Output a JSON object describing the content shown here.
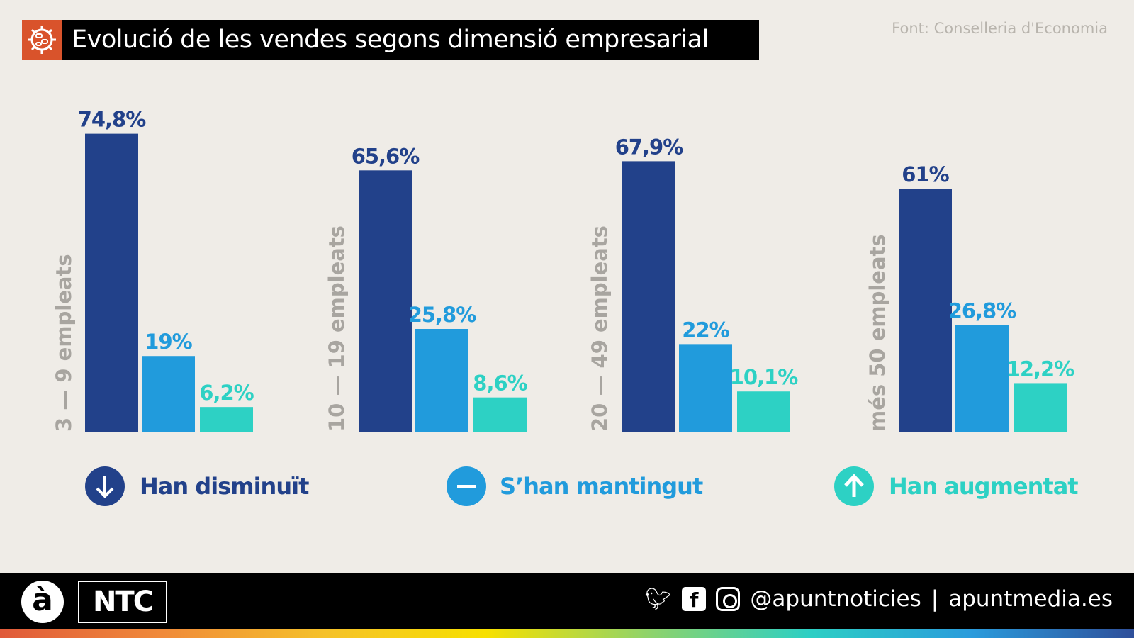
{
  "header": {
    "title": "Evolució de les vendes segons dimensió empresarial",
    "source": "Font: Conselleria d'Economia",
    "icon": "virus-icon"
  },
  "colors": {
    "decreased": "#22418a",
    "maintained": "#219bdc",
    "increased": "#2dd1c4",
    "title_icon": "#d9532b"
  },
  "chart_data": {
    "type": "bar",
    "categories": [
      "3 — 9 empleats",
      "10 — 19 empleats",
      "20 — 49 empleats",
      "més 50 empleats"
    ],
    "series": [
      {
        "name": "Han disminuït",
        "values": [
          74.8,
          65.6,
          67.9,
          61
        ],
        "labels": [
          "74,8%",
          "65,6%",
          "67,9%",
          "61%"
        ]
      },
      {
        "name": "S’han mantingut",
        "values": [
          19,
          25.8,
          22,
          26.8
        ],
        "labels": [
          "19%",
          "25,8%",
          "22%",
          "26,8%"
        ]
      },
      {
        "name": "Han augmentat",
        "values": [
          6.2,
          8.6,
          10.1,
          12.2
        ],
        "labels": [
          "6,2%",
          "8,6%",
          "10,1%",
          "12,2%"
        ]
      }
    ],
    "legend_position": "bottom",
    "legend_icons": [
      "arrow-down-icon",
      "minus-icon",
      "arrow-up-icon"
    ],
    "grid": false
  },
  "footer": {
    "logo": "à",
    "brand": "NTC",
    "handle": "@apuntnoticies",
    "separator": "|",
    "website": "apuntmedia.es"
  }
}
